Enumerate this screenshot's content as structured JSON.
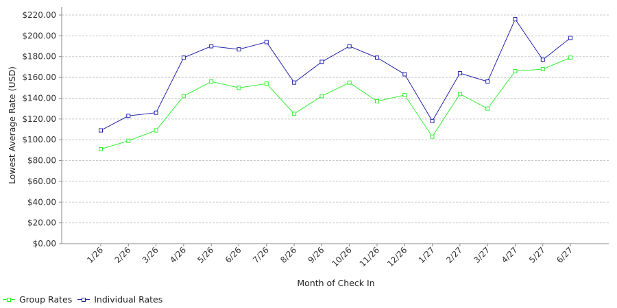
{
  "chart_data": {
    "type": "line",
    "title": "",
    "xlabel": "Month of Check In",
    "ylabel": "Lowest Average Rate (USD)",
    "ylim": [
      0,
      220
    ],
    "yticks": [
      "$0.00",
      "$20.00",
      "$40.00",
      "$60.00",
      "$80.00",
      "$100.00",
      "$120.00",
      "$140.00",
      "$160.00",
      "$180.00",
      "$200.00",
      "$220.00"
    ],
    "categories": [
      "1/26",
      "2/26",
      "3/26",
      "4/26",
      "5/26",
      "6/26",
      "7/26",
      "8/26",
      "9/26",
      "10/26",
      "11/26",
      "12/26",
      "1/27",
      "2/27",
      "3/27",
      "4/27",
      "5/27",
      "6/27"
    ],
    "grid": true,
    "legend_position": "bottom-left",
    "series": [
      {
        "name": "Group Rates",
        "color": "#33ee33",
        "values": [
          91,
          99,
          109,
          142,
          156,
          150,
          154,
          125,
          142,
          155,
          137,
          143,
          103,
          144,
          130,
          166,
          168,
          179
        ]
      },
      {
        "name": "Individual Rates",
        "color": "#2222aa",
        "values": [
          109,
          123,
          126,
          179,
          190,
          187,
          194,
          155,
          175,
          190,
          179,
          163,
          118,
          164,
          156,
          216,
          177,
          198
        ]
      }
    ]
  }
}
